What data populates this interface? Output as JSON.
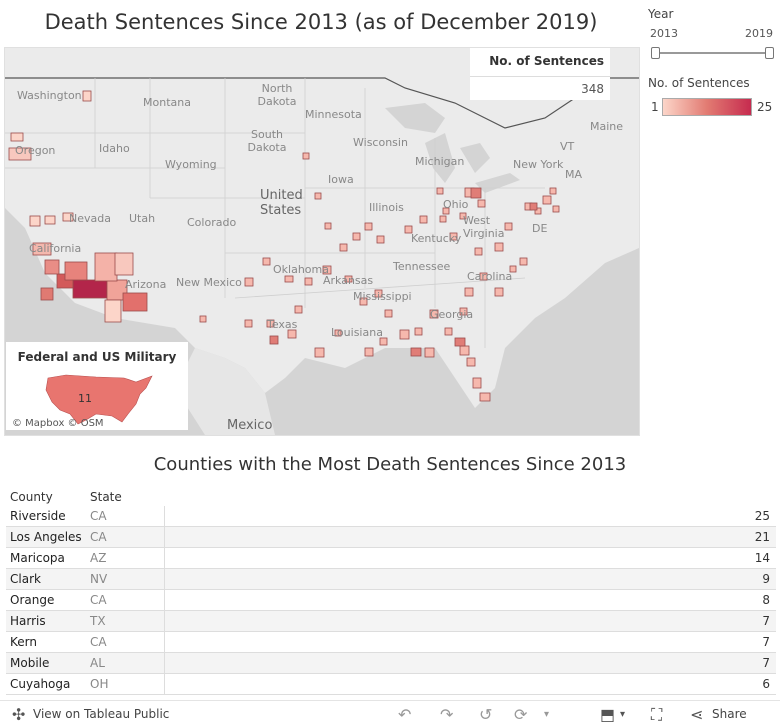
{
  "title": "Death Sentences Since 2013 (as of December 2019)",
  "count_box": {
    "label": "No. of Sentences",
    "value": "348"
  },
  "year_filter": {
    "title": "Year",
    "min": "2013",
    "max": "2019"
  },
  "legend": {
    "title": "No. of Sentences",
    "min": "1",
    "max": "25",
    "color_low": "#fcd5c9",
    "color_high": "#c62b4f"
  },
  "federal_box": {
    "title": "Federal and US Military",
    "value": "11"
  },
  "attribution": "© Mapbox  © OSM",
  "map_labels": {
    "washington": "Washington",
    "oregon": "Oregon",
    "idaho": "Idaho",
    "montana": "Montana",
    "wyoming": "Wyoming",
    "nevada": "Nevada",
    "utah": "Utah",
    "colorado": "Colorado",
    "california": "California",
    "arizona": "Arizona",
    "new_mexico": "New Mexico",
    "north_dakota": "North Dakota",
    "south_dakota": "South Dakota",
    "united_states": "United States",
    "minnesota": "Minnesota",
    "wisconsin": "Wisconsin",
    "iowa": "Iowa",
    "illinois": "Illinois",
    "michigan": "Michigan",
    "ohio": "Ohio",
    "west_virginia": "West Virginia",
    "kentucky": "Kentucky",
    "tennessee": "Tennessee",
    "oklahoma": "Oklahoma",
    "arkansas": "Arkansas",
    "mississippi": "Mississippi",
    "texas": "Texas",
    "louisiana": "Louisiana",
    "georgia": "Georgia",
    "carolina": "Carolina",
    "new_york": "New York",
    "maine": "Maine",
    "vt": "VT",
    "ma": "MA",
    "de": "DE",
    "mexico": "Mexico"
  },
  "table": {
    "title": "Counties with the Most Death Sentences Since 2013",
    "col_county": "County",
    "col_state": "State",
    "rows": [
      {
        "county": "Riverside",
        "state": "CA",
        "value": "25"
      },
      {
        "county": "Los Angeles",
        "state": "CA",
        "value": "21"
      },
      {
        "county": "Maricopa",
        "state": "AZ",
        "value": "14"
      },
      {
        "county": "Clark",
        "state": "NV",
        "value": "9"
      },
      {
        "county": "Orange",
        "state": "CA",
        "value": "8"
      },
      {
        "county": "Harris",
        "state": "TX",
        "value": "7"
      },
      {
        "county": "Kern",
        "state": "CA",
        "value": "7"
      },
      {
        "county": "Mobile",
        "state": "AL",
        "value": "7"
      },
      {
        "county": "Cuyahoga",
        "state": "OH",
        "value": "6"
      }
    ]
  },
  "footer": {
    "view_label": "View on Tableau Public",
    "share_label": "Share"
  }
}
